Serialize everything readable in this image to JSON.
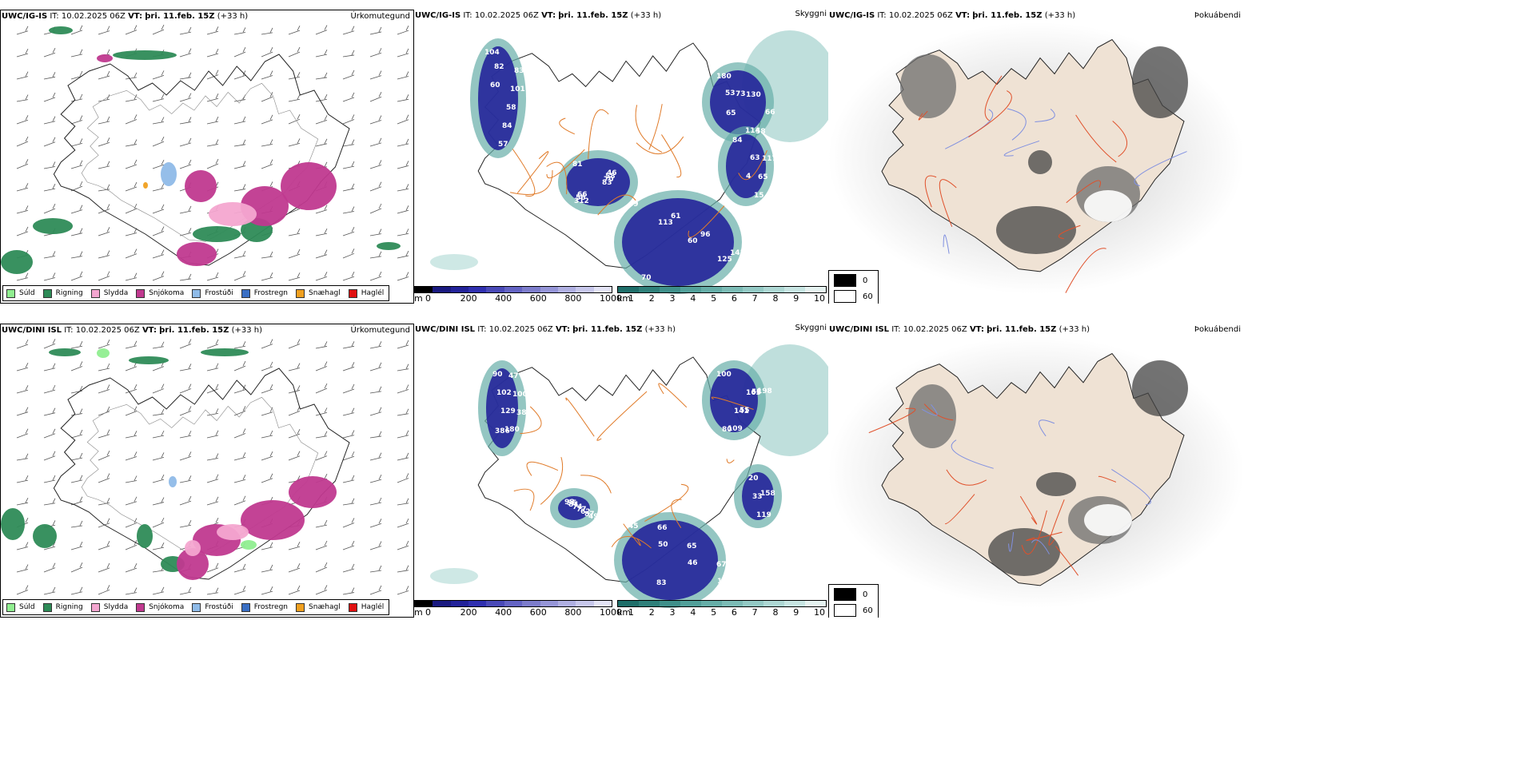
{
  "panels": {
    "ig_precip": {
      "model": "UWC/IG-IS",
      "it_label": "IT:",
      "it": "10.02.2025 06Z",
      "vt_label": "VT:",
      "vt": "þri. 11.feb. 15Z",
      "lead": "(+33 h)",
      "right_label": "Úrkomutegund"
    },
    "ig_cloud": {
      "model": "UWC/IG-IS",
      "it_label": "IT:",
      "it": "10.02.2025 06Z",
      "vt_label": "VT:",
      "vt": "þri. 11.feb. 15Z",
      "lead": "(+33 h)",
      "right_label": "Skyggni"
    },
    "ig_fog": {
      "model": "UWC/IG-IS",
      "it_label": "IT:",
      "it": "10.02.2025 06Z",
      "vt_label": "VT:",
      "vt": "þri. 11.feb. 15Z",
      "lead": "(+33 h)",
      "right_label": "Þokuábendi"
    },
    "dini_precip": {
      "model": "UWC/DINI ISL",
      "it_label": "IT:",
      "it": "10.02.2025 06Z",
      "vt_label": "VT:",
      "vt": "þri. 11.feb. 15Z",
      "lead": "(+33 h)",
      "right_label": "Úrkomutegund"
    },
    "dini_cloud": {
      "model": "UWC/DINI ISL",
      "it_label": "IT:",
      "it": "10.02.2025 06Z",
      "vt_label": "VT:",
      "vt": "þri. 11.feb. 15Z",
      "lead": "(+33 h)",
      "right_label": "Skyggni"
    },
    "dini_fog": {
      "model": "UWC/DINI ISL",
      "it_label": "IT:",
      "it": "10.02.2025 06Z",
      "vt_label": "VT:",
      "vt": "þri. 11.feb. 15Z",
      "lead": "(+33 h)",
      "right_label": "Þokuábendi"
    }
  },
  "precip_legend": [
    {
      "label": "Súld",
      "color": "#90ee90"
    },
    {
      "label": "Rigning",
      "color": "#2e8b57"
    },
    {
      "label": "Slydda",
      "color": "#f4a6d0"
    },
    {
      "label": "Snjókoma",
      "color": "#c0398f"
    },
    {
      "label": "Frostúði",
      "color": "#8fbbe8"
    },
    {
      "label": "Frostregn",
      "color": "#3a6fc4"
    },
    {
      "label": "Snæhagl",
      "color": "#f0a020"
    },
    {
      "label": "Haglél",
      "color": "#e01010"
    }
  ],
  "ceiling_bar": {
    "unit": "m",
    "ticks": [
      "0",
      "200",
      "400",
      "600",
      "800",
      "1000"
    ],
    "colors": [
      "#000000",
      "#1a1a80",
      "#23239a",
      "#3030b0",
      "#4a4ab8",
      "#6464c4",
      "#7d7dcc",
      "#9696d8",
      "#b0b0e2",
      "#c8c8ec",
      "#e4e4f6"
    ]
  },
  "visibility_bar": {
    "unit": "km",
    "ticks": [
      "1",
      "2",
      "3",
      "4",
      "5",
      "6",
      "7",
      "8",
      "9",
      "10"
    ],
    "colors": [
      "#1f6f6a",
      "#2f807a",
      "#3f908a",
      "#52a09a",
      "#66aea8",
      "#7cbcb6",
      "#94cac5",
      "#aed8d4",
      "#c8e6e3",
      "#e6f3f1"
    ]
  },
  "fog_legend": [
    {
      "label": "0",
      "color": "#000000"
    },
    {
      "label": "60",
      "color": "#ffffff"
    }
  ],
  "ig_cloud_labels": [
    "104",
    "83",
    "101",
    "58",
    "84",
    "57",
    "82",
    "60",
    "81",
    "83",
    "312",
    "70",
    "56",
    "58",
    "66",
    "46",
    "49",
    "113",
    "60",
    "125",
    "70",
    "61",
    "96",
    "141",
    "180",
    "130",
    "65",
    "58",
    "73",
    "66",
    "114",
    "53",
    "84",
    "117",
    "65",
    "15",
    "63",
    "4"
  ],
  "dini_cloud_labels": [
    "90",
    "102",
    "129",
    "180",
    "47",
    "100",
    "38",
    "386",
    "98",
    "84",
    "74",
    "77",
    "62",
    "87",
    "49",
    "55",
    "45",
    "50",
    "46",
    "115",
    "66",
    "65",
    "67",
    "83",
    "100",
    "165",
    "141",
    "80",
    "58",
    "55",
    "109",
    "198",
    "20",
    "33",
    "119",
    "158"
  ]
}
